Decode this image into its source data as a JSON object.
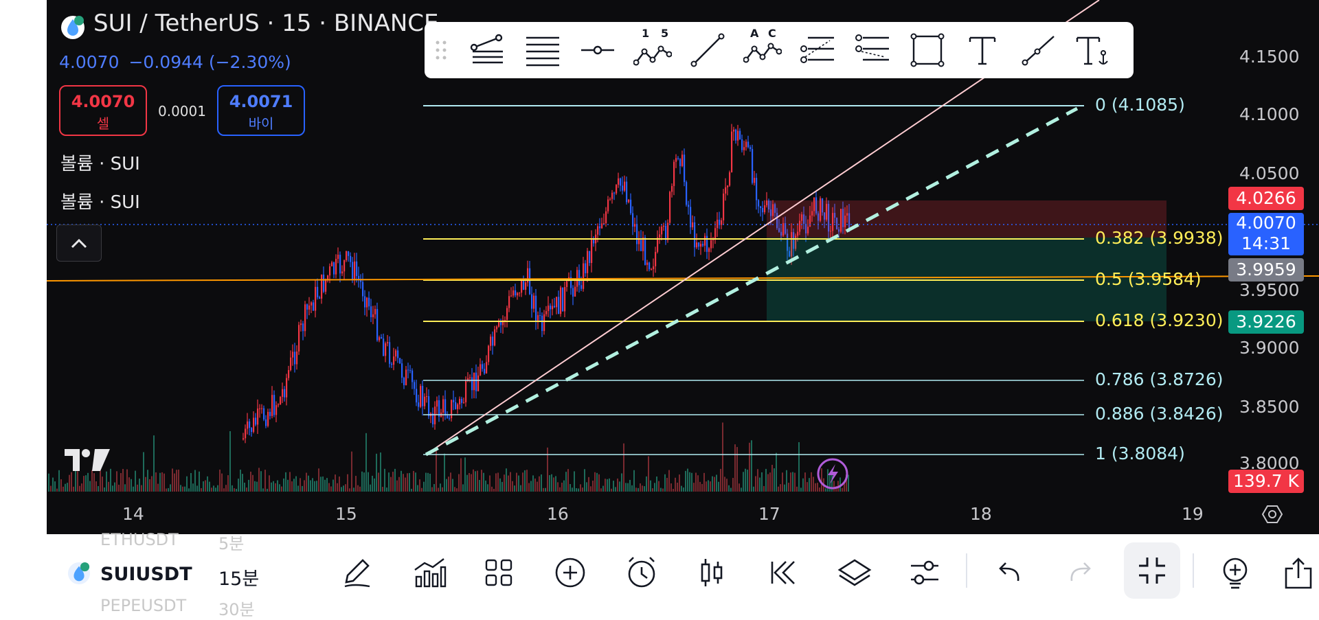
{
  "header": {
    "symbol_title": "SUI / TetherUS · 15 · BINANCE",
    "last_price": "4.0070",
    "change": "−0.0944 (−2.30%)"
  },
  "trade": {
    "sell_price": "4.0070",
    "sell_label": "셀",
    "spread": "0.0001",
    "buy_price": "4.0071",
    "buy_label": "바이"
  },
  "indicators": [
    "볼륨 · SUI",
    "볼륨 · SUI"
  ],
  "price_axis": {
    "ticks": [
      "4.1500",
      "4.1000",
      "4.0500",
      "3.9500",
      "3.9000",
      "3.8500",
      "3.8000"
    ],
    "tags": {
      "resistance": "4.0266",
      "current_price": "4.0070",
      "countdown": "14:31",
      "horizontal_line": "3.9959",
      "support": "3.9226",
      "volume": "139.7 K"
    }
  },
  "time_axis": {
    "ticks": [
      "14",
      "15",
      "16",
      "17",
      "18",
      "19"
    ]
  },
  "fib_levels": [
    {
      "label": "0 (4.1085)",
      "color": "#b2ebf2"
    },
    {
      "label": "0.382 (3.9938)",
      "color": "#ffee58"
    },
    {
      "label": "0.5 (3.9584)",
      "color": "#ffee58"
    },
    {
      "label": "0.618 (3.9230)",
      "color": "#ffee58"
    },
    {
      "label": "0.786 (3.8726)",
      "color": "#b2ebf2"
    },
    {
      "label": "0.886 (3.8426)",
      "color": "#b2ebf2"
    },
    {
      "label": "1 (3.8084)",
      "color": "#b2ebf2"
    }
  ],
  "drawing_toolbar": {
    "tools": [
      "fib-channel-icon",
      "parallel-lines-icon",
      "horizontal-ray-icon",
      "elliott-wave-icon",
      "trend-line-icon",
      "abcd-pattern-icon",
      "fib-extension-icon",
      "fib-speed-icon",
      "rectangle-icon",
      "text-icon",
      "ray-icon",
      "anchored-text-icon"
    ],
    "elliott_labels": [
      "1",
      "5"
    ],
    "abcd_labels": [
      "A",
      "C"
    ]
  },
  "watchlist": {
    "above": "ETHUSDT",
    "above_interval": "5분",
    "symbol": "SUIUSDT",
    "interval": "15분",
    "below": "PEPEUSDT",
    "below_interval": "30분"
  },
  "bottom_toolbar": [
    "pencil-icon",
    "indicators-icon",
    "grid-layout-icon",
    "add-icon",
    "alarm-icon",
    "candlestick-icon",
    "replay-icon",
    "layers-icon",
    "settings-sliders-icon",
    "undo-icon",
    "redo-icon",
    "exit-fullscreen-icon",
    "add-alert-icon",
    "share-icon"
  ],
  "colors": {
    "background": "#0c0c0e",
    "up": "#f23645",
    "down": "#2962ff",
    "volume_green": "#1e6b5a",
    "volume_red": "#7a2a30",
    "fib_yellow": "#ffee58",
    "fib_cyan": "#b2ebf2",
    "horizontal_line": "#ff9800",
    "trend_line": "#ffcdd2",
    "dashed_trend": "#b2f0e0",
    "support_tag": "#089981",
    "resistance_tag": "#f23645",
    "current_tag": "#2962ff",
    "gray_tag": "#787b86"
  }
}
